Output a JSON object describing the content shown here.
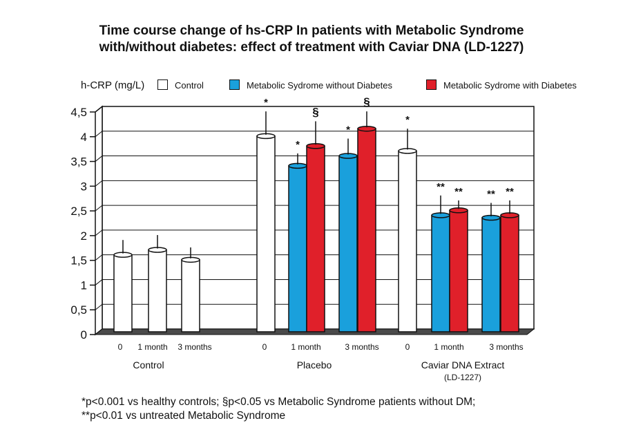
{
  "chart_data": {
    "type": "bar",
    "title_line1": "Time course change of hs-CRP In patients with Metabolic Syndrome",
    "title_line2": "with/without diabetes: effect of treatment with Caviar DNA (LD-1227)",
    "ylabel": "h-CRP (mg/L)",
    "ylim": [
      0,
      4.5
    ],
    "yticks": [
      "0",
      "0,5",
      "1",
      "1,5",
      "2",
      "2,5",
      "3",
      "3,5",
      "4",
      "4,5"
    ],
    "grid": true,
    "legend_placement": "top",
    "series": [
      {
        "name": "Control",
        "color": "#ffffff"
      },
      {
        "name": "Metabolic Sydrome without Diabetes",
        "color": "#1aa0dc"
      },
      {
        "name": "Metabolic Sydrome with Diabetes",
        "color": "#e0202a"
      }
    ],
    "groups": [
      {
        "label": "Control",
        "label2": "",
        "ticks": [
          "0",
          "1 month",
          "3 months"
        ]
      },
      {
        "label": "Placebo",
        "label2": "",
        "ticks": [
          "0",
          "1 month",
          "3 months"
        ]
      },
      {
        "label": "Caviar DNA Extract",
        "label2": "(LD-1227)",
        "ticks": [
          "0",
          "1 month",
          "3 months"
        ]
      }
    ],
    "bars": [
      {
        "group": 0,
        "series": 0,
        "value": 1.5,
        "error": 0.3,
        "mark": ""
      },
      {
        "group": 0,
        "series": 0,
        "value": 1.6,
        "error": 0.3,
        "mark": ""
      },
      {
        "group": 0,
        "series": 0,
        "value": 1.4,
        "error": 0.25,
        "mark": ""
      },
      {
        "group": 1,
        "series": 0,
        "value": 3.9,
        "error": 0.5,
        "mark": "*"
      },
      {
        "group": 1,
        "series": 1,
        "value": 3.3,
        "error": 0.25,
        "mark": "*"
      },
      {
        "group": 1,
        "series": 2,
        "value": 3.7,
        "error": 0.5,
        "mark": "§"
      },
      {
        "group": 1,
        "series": 1,
        "value": 3.5,
        "error": 0.35,
        "mark": "*"
      },
      {
        "group": 1,
        "series": 2,
        "value": 4.05,
        "error": 0.35,
        "mark": "§"
      },
      {
        "group": 2,
        "series": 0,
        "value": 3.6,
        "error": 0.45,
        "mark": "*"
      },
      {
        "group": 2,
        "series": 1,
        "value": 2.3,
        "error": 0.4,
        "mark": "**"
      },
      {
        "group": 2,
        "series": 2,
        "value": 2.4,
        "error": 0.2,
        "mark": "**"
      },
      {
        "group": 2,
        "series": 1,
        "value": 2.25,
        "error": 0.3,
        "mark": "**"
      },
      {
        "group": 2,
        "series": 2,
        "value": 2.3,
        "error": 0.3,
        "mark": "**"
      }
    ],
    "footnote_line1": "*p<0.001 vs healthy controls; §p<0.05 vs Metabolic Syndrome patients without DM;",
    "footnote_line2": "**p<0.01 vs untreated Metabolic Syndrome"
  }
}
